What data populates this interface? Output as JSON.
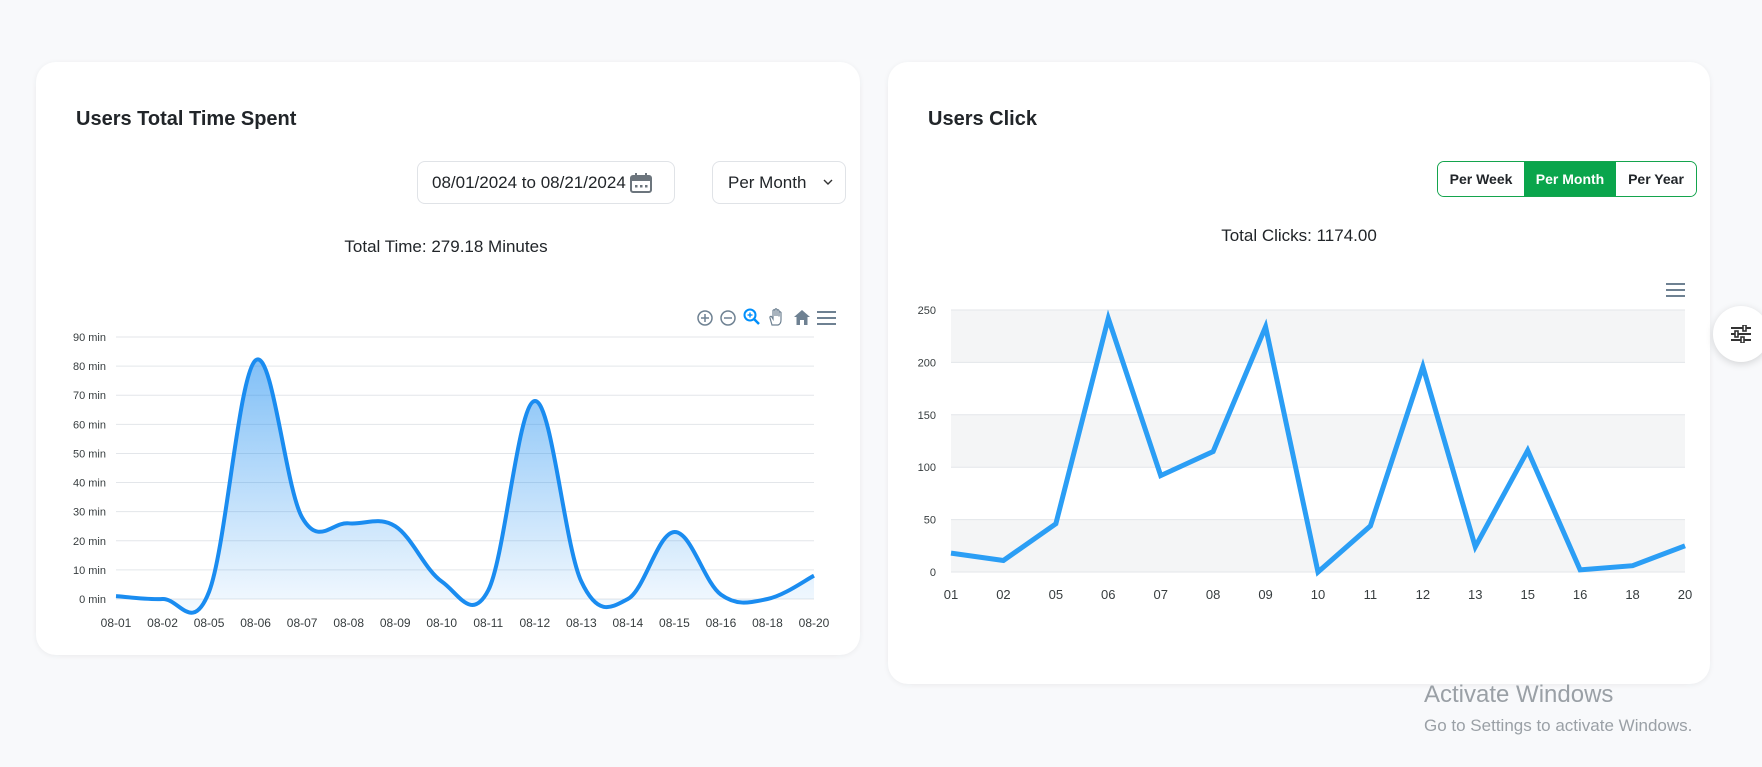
{
  "time_card": {
    "title": "Users Total Time Spent",
    "date_range": "08/01/2024 to 08/21/2024",
    "period_select": "Per Month",
    "total_text": "Total Time: 279.18 Minutes",
    "toolbar_icons": [
      "zoom-in-icon",
      "zoom-out-icon",
      "selection-zoom-icon",
      "pan-hand-icon",
      "home-reset-icon",
      "menu-icon"
    ]
  },
  "clicks_card": {
    "title": "Users Click",
    "period_buttons": [
      {
        "label": "Per Week",
        "active": false
      },
      {
        "label": "Per Month",
        "active": true
      },
      {
        "label": "Per Year",
        "active": false
      }
    ],
    "total_text": "Total Clicks: 1174.00",
    "toolbar_icons": [
      "menu-icon"
    ]
  },
  "settings_icon": "sliders-icon",
  "watermark": {
    "line1": "Activate Windows",
    "line2": "Go to Settings to activate Windows."
  },
  "colors": {
    "accent_green": "#0aa54c",
    "line_blue": "#2b9ef5",
    "area_blue": "#1a8cf0"
  },
  "chart_data": [
    {
      "type": "area",
      "categories": [
        "08-01",
        "08-02",
        "08-05",
        "08-06",
        "08-07",
        "08-08",
        "08-09",
        "08-10",
        "08-11",
        "08-12",
        "08-13",
        "08-14",
        "08-15",
        "08-16",
        "08-18",
        "08-20"
      ],
      "values": [
        1,
        0,
        2.5,
        82,
        28,
        26,
        25,
        6,
        3,
        68,
        6,
        0,
        23,
        1.5,
        0,
        8
      ],
      "yticks": [
        "0 min",
        "10 min",
        "20 min",
        "30 min",
        "40 min",
        "50 min",
        "60 min",
        "70 min",
        "80 min",
        "90 min"
      ],
      "ylim": [
        0,
        90
      ],
      "grid": true,
      "smooth": true
    },
    {
      "type": "line",
      "categories": [
        "01",
        "02",
        "05",
        "06",
        "07",
        "08",
        "09",
        "10",
        "11",
        "12",
        "13",
        "15",
        "16",
        "18",
        "20"
      ],
      "values": [
        18,
        11,
        46,
        242,
        92,
        115,
        234,
        0,
        44,
        196,
        24,
        116,
        2,
        6,
        25
      ],
      "yticks": [
        "0",
        "50",
        "100",
        "150",
        "200",
        "250"
      ],
      "ylim": [
        0,
        250
      ],
      "grid": true,
      "banded_background": true
    }
  ]
}
